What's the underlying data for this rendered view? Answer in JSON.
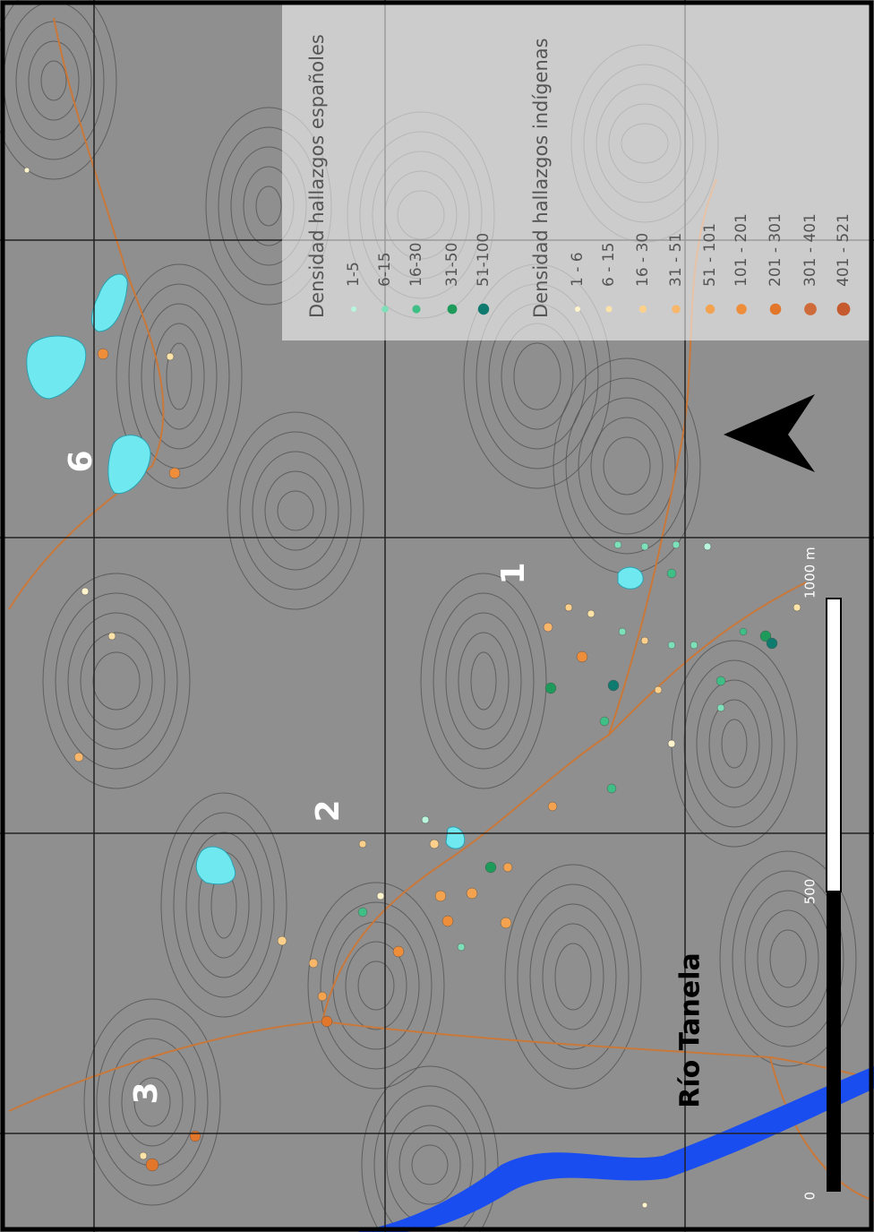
{
  "legend": {
    "spanish": {
      "title": "Densidad hallazgos españoles",
      "items": [
        {
          "label": "1-5",
          "color": "#b8f5dc"
        },
        {
          "label": "6-15",
          "color": "#7ee0b8"
        },
        {
          "label": "16-30",
          "color": "#3fbf86"
        },
        {
          "label": "31-50",
          "color": "#1e9a5a"
        },
        {
          "label": "51-100",
          "color": "#0f7a6e"
        }
      ]
    },
    "indigenous": {
      "title": "Densidad hallazgos indígenas",
      "items": [
        {
          "label": "1 - 6",
          "color": "#fff4cc"
        },
        {
          "label": "6 - 15",
          "color": "#fde3a8"
        },
        {
          "label": "16 - 30",
          "color": "#fcd08a"
        },
        {
          "label": "31 - 51",
          "color": "#f7b66a"
        },
        {
          "label": "51 - 101",
          "color": "#f3a24f"
        },
        {
          "label": "101 - 201",
          "color": "#ef8e3a"
        },
        {
          "label": "201 - 301",
          "color": "#e2762b"
        },
        {
          "label": "301 - 401",
          "color": "#cf6a3a"
        },
        {
          "label": "401 - 521",
          "color": "#c45a2e"
        }
      ]
    }
  },
  "site_labels": [
    "6",
    "1",
    "2",
    "3"
  ],
  "river_label": "Río Tanela",
  "scale_bar": {
    "labels": [
      "0",
      "500",
      "1000 m"
    ]
  }
}
